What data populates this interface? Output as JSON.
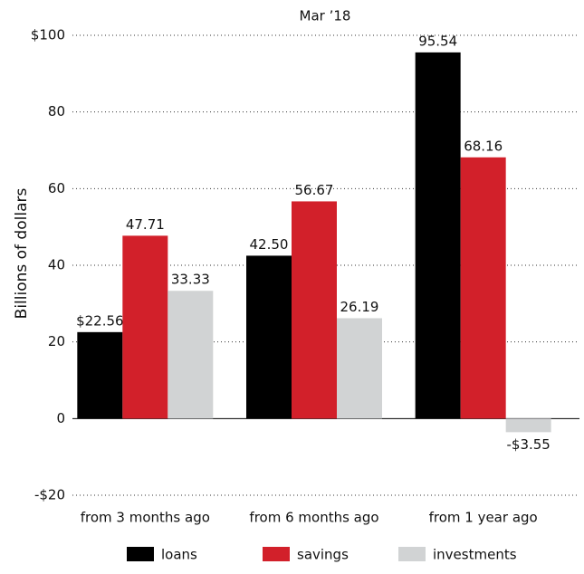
{
  "chart_data": {
    "type": "bar",
    "title": "Mar ’18",
    "y_label": "Billions of dollars",
    "categories": [
      "from 3 months ago",
      "from 6 months ago",
      "from 1 year ago"
    ],
    "series": [
      {
        "name": "loans",
        "color": "#000000",
        "values": [
          22.56,
          42.5,
          95.54
        ],
        "value_labels": [
          "$22.56",
          "42.50",
          "95.54"
        ]
      },
      {
        "name": "savings",
        "color": "#d2202a",
        "values": [
          47.71,
          56.67,
          68.16
        ],
        "value_labels": [
          "47.71",
          "56.67",
          "68.16"
        ]
      },
      {
        "name": "investments",
        "color": "#d1d3d4",
        "values": [
          33.33,
          26.19,
          -3.55
        ],
        "value_labels": [
          "33.33",
          "26.19",
          "-$3.55"
        ]
      }
    ],
    "ylim": [
      -20,
      100
    ],
    "yticks": [
      {
        "value": -20,
        "label": "-$20"
      },
      0,
      20,
      40,
      60,
      80,
      {
        "value": 100,
        "label": "$100"
      }
    ],
    "grid": true,
    "legend": "bottom"
  }
}
